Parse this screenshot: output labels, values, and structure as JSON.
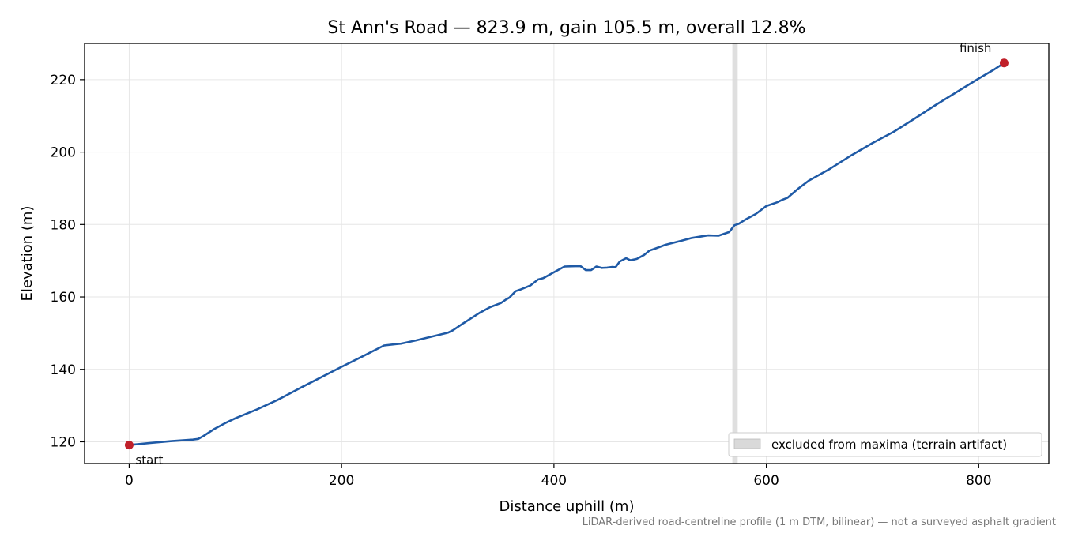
{
  "chart_data": {
    "type": "line",
    "title": "St Ann's Road — 823.9 m, gain 105.5 m, overall 12.8%",
    "xlabel": "Distance uphill (m)",
    "ylabel": "Elevation (m)",
    "footnote": "LiDAR-derived road-centreline profile (1 m DTM, bilinear) — not a surveyed asphalt gradient",
    "xlim": [
      -42,
      866
    ],
    "ylim": [
      114,
      230
    ],
    "x_ticks": [
      0,
      200,
      400,
      600,
      800
    ],
    "y_ticks": [
      120,
      140,
      160,
      180,
      200,
      220
    ],
    "grid": true,
    "legend_position": "lower right",
    "colors": {
      "line": "#1f5aa6",
      "marker": "#c0202a",
      "band": "#d9d9d9",
      "grid": "#e6e6e6",
      "footnote": "#777777"
    },
    "excluded_band": {
      "x_start": 568,
      "x_end": 573,
      "label": "excluded from maxima (terrain artifact)"
    },
    "markers": [
      {
        "label": "start",
        "x": 0,
        "y": 119.1
      },
      {
        "label": "finish",
        "x": 823.9,
        "y": 224.6
      }
    ],
    "series": [
      {
        "x": [
          0,
          20,
          40,
          60,
          65,
          70,
          80,
          90,
          100,
          110,
          120,
          140,
          160,
          180,
          200,
          220,
          240,
          252,
          256,
          270,
          290,
          300,
          305,
          315,
          330,
          340,
          350,
          355,
          358,
          364,
          368,
          378,
          385,
          390,
          392,
          398,
          410,
          420,
          425,
          430,
          435,
          440,
          445,
          450,
          455,
          458,
          462,
          468,
          472,
          478,
          485,
          490,
          495,
          505,
          520,
          530,
          545,
          555,
          565,
          570,
          574,
          580,
          590,
          600,
          610,
          615,
          620,
          630,
          640,
          660,
          680,
          700,
          720,
          740,
          760,
          780,
          800,
          815,
          823.9
        ],
        "y": [
          119.1,
          119.7,
          120.2,
          120.6,
          120.8,
          121.6,
          123.5,
          125.1,
          126.5,
          127.7,
          128.9,
          131.6,
          134.7,
          137.7,
          140.7,
          143.6,
          146.6,
          147.0,
          147.1,
          148.0,
          149.4,
          150.1,
          150.8,
          152.8,
          155.6,
          157.2,
          158.3,
          159.3,
          159.8,
          161.6,
          162.0,
          163.2,
          164.8,
          165.2,
          165.5,
          166.5,
          168.4,
          168.5,
          168.5,
          167.4,
          167.4,
          168.4,
          168.0,
          168.1,
          168.3,
          168.2,
          169.8,
          170.7,
          170.1,
          170.5,
          171.6,
          172.8,
          173.3,
          174.4,
          175.5,
          176.3,
          177.0,
          176.9,
          177.9,
          179.8,
          180.2,
          181.3,
          182.9,
          185.1,
          186.1,
          186.8,
          187.4,
          189.9,
          192.1,
          195.4,
          199.1,
          202.5,
          205.6,
          209.3,
          213.1,
          216.7,
          220.3,
          222.9,
          224.6
        ]
      }
    ]
  }
}
